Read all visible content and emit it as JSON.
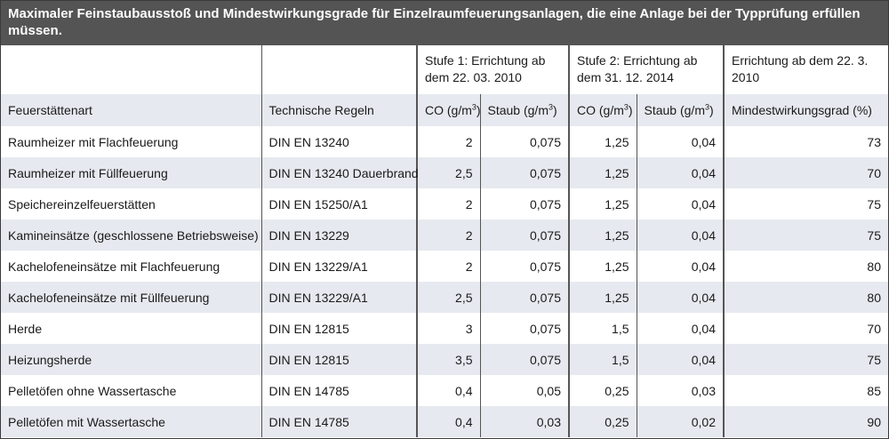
{
  "title": "Maximaler Feinstaubausstoß und Mindestwirkungsgrade für Einzelraumfeuerungsanlagen, die eine Anlage bei der Typprüfung erfüllen müssen.",
  "groups": {
    "stufe1": "Stufe 1: Errichtung ab dem 22. 03. 2010",
    "stufe2": "Stufe 2: Errichtung ab dem 31. 12. 2014",
    "wirkung": "Errichtung ab dem 22. 3. 2010"
  },
  "columns": {
    "art": "Feuerstättenart",
    "regeln": "Technische Regeln",
    "co1": "CO (g/m",
    "staub1": "Staub (g/m",
    "co2": "CO (g/m",
    "staub2": "Staub (g/m",
    "exp": "3",
    "close": ")",
    "wirkung": "Mindestwirkungsgrad (%)"
  },
  "rows": [
    {
      "art": "Raumheizer mit Flachfeuerung",
      "regeln": "DIN EN 13240",
      "co1": "2",
      "staub1": "0,075",
      "co2": "1,25",
      "staub2": "0,04",
      "wirkung": "73"
    },
    {
      "art": "Raumheizer mit Füllfeuerung",
      "regeln": "DIN EN 13240 Dauerbrand",
      "co1": "2,5",
      "staub1": "0,075",
      "co2": "1,25",
      "staub2": "0,04",
      "wirkung": "70"
    },
    {
      "art": "Speichereinzelfeuerstätten",
      "regeln": "DIN EN 15250/A1",
      "co1": "2",
      "staub1": "0,075",
      "co2": "1,25",
      "staub2": "0,04",
      "wirkung": "75"
    },
    {
      "art": "Kamineinsätze (geschlossene Betriebsweise)",
      "regeln": "DIN EN 13229",
      "co1": "2",
      "staub1": "0,075",
      "co2": "1,25",
      "staub2": "0,04",
      "wirkung": "75"
    },
    {
      "art": "Kachelofeneinsätze mit Flachfeuerung",
      "regeln": "DIN EN 13229/A1",
      "co1": "2",
      "staub1": "0,075",
      "co2": "1,25",
      "staub2": "0,04",
      "wirkung": "80"
    },
    {
      "art": "Kachelofeneinsätze mit Füllfeuerung",
      "regeln": "DIN EN 13229/A1",
      "co1": "2,5",
      "staub1": "0,075",
      "co2": "1,25",
      "staub2": "0,04",
      "wirkung": "80"
    },
    {
      "art": "Herde",
      "regeln": "DIN EN 12815",
      "co1": "3",
      "staub1": "0,075",
      "co2": "1,5",
      "staub2": "0,04",
      "wirkung": "70"
    },
    {
      "art": "Heizungsherde",
      "regeln": "DIN EN 12815",
      "co1": "3,5",
      "staub1": "0,075",
      "co2": "1,5",
      "staub2": "0,04",
      "wirkung": "75"
    },
    {
      "art": "Pelletöfen ohne Wassertasche",
      "regeln": "DIN EN 14785",
      "co1": "0,4",
      "staub1": "0,05",
      "co2": "0,25",
      "staub2": "0,03",
      "wirkung": "85"
    },
    {
      "art": "Pelletöfen mit Wassertasche",
      "regeln": "DIN EN 14785",
      "co1": "0,4",
      "staub1": "0,03",
      "co2": "0,25",
      "staub2": "0,02",
      "wirkung": "90"
    }
  ]
}
